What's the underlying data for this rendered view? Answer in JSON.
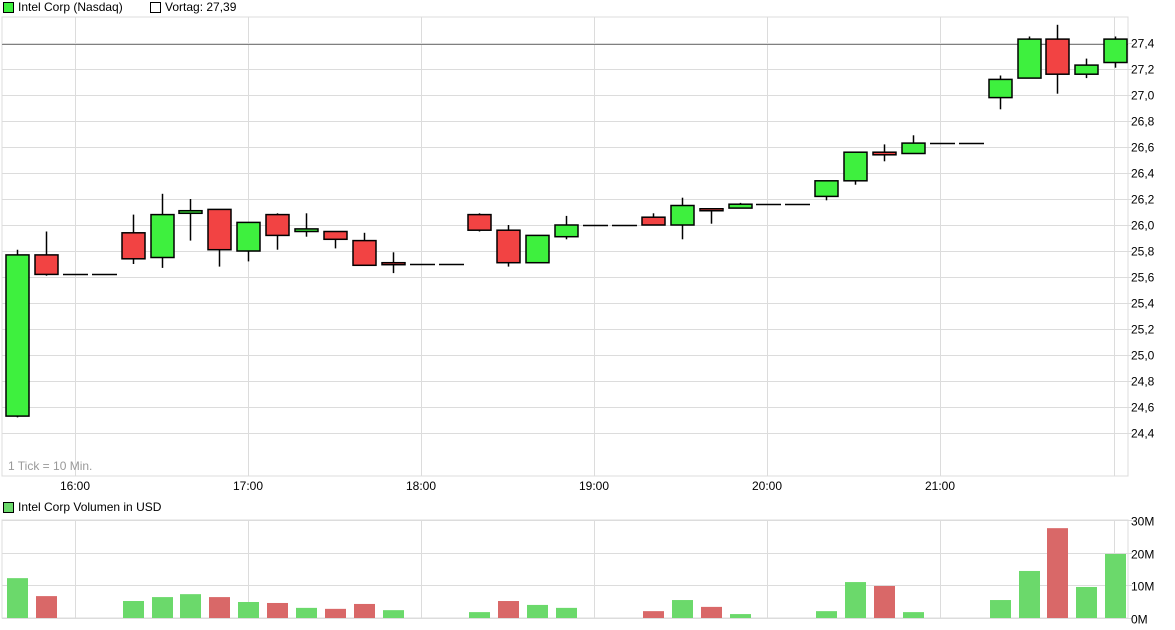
{
  "legend": {
    "price_label": "Intel Corp (Nasdaq)",
    "price_color": "#3ef03e",
    "prev_label": "Vortag: 27,39",
    "volume_label": "Intel Corp Volumen in USD",
    "volume_color": "#6bd96b"
  },
  "tick_note": "1 Tick = 10 Min.",
  "colors": {
    "up": "#3ef03e",
    "down": "#f24343",
    "vol_up": "#6bd96b",
    "vol_down": "#d96868",
    "grid": "#dcdcdc",
    "prev_line": "#808080"
  },
  "chart_data": [
    {
      "type": "candlestick",
      "title": "Intel Corp (Nasdaq)",
      "interval": "10 Min.",
      "previous_close": 27.39,
      "ylim": [
        24.3,
        27.6
      ],
      "yticks": [
        24.4,
        24.6,
        24.8,
        25.0,
        25.2,
        25.4,
        25.6,
        25.8,
        26.0,
        26.2,
        26.4,
        26.6,
        26.8,
        27.0,
        27.2,
        27.4
      ],
      "ytick_labels": [
        "24,4",
        "24,6",
        "24,8",
        "25,0",
        "25,2",
        "25,4",
        "25,6",
        "25,8",
        "26,0",
        "26,2",
        "26,4",
        "26,6",
        "26,8",
        "27,0",
        "27,2",
        "27,4"
      ],
      "xticks": [
        "16:00",
        "17:00",
        "18:00",
        "19:00",
        "20:00",
        "21:00"
      ],
      "grid": true,
      "ohlc": [
        {
          "o": 24.53,
          "h": 25.81,
          "l": 24.52,
          "c": 25.77
        },
        {
          "o": 25.77,
          "h": 25.95,
          "l": 25.61,
          "c": 25.62
        },
        {
          "o": 25.62,
          "h": 25.62,
          "l": 25.62,
          "c": 25.62
        },
        {
          "o": 25.62,
          "h": 25.62,
          "l": 25.62,
          "c": 25.62
        },
        {
          "o": 25.94,
          "h": 26.08,
          "l": 25.7,
          "c": 25.74
        },
        {
          "o": 25.75,
          "h": 26.24,
          "l": 25.67,
          "c": 26.08
        },
        {
          "o": 26.09,
          "h": 26.2,
          "l": 25.88,
          "c": 26.11
        },
        {
          "o": 26.12,
          "h": 26.12,
          "l": 25.68,
          "c": 25.81
        },
        {
          "o": 25.8,
          "h": 26.02,
          "l": 25.72,
          "c": 26.02
        },
        {
          "o": 26.08,
          "h": 26.09,
          "l": 25.81,
          "c": 25.92
        },
        {
          "o": 25.95,
          "h": 26.09,
          "l": 25.91,
          "c": 25.97
        },
        {
          "o": 25.95,
          "h": 25.95,
          "l": 25.82,
          "c": 25.89
        },
        {
          "o": 25.88,
          "h": 25.94,
          "l": 25.69,
          "c": 25.69
        },
        {
          "o": 25.71,
          "h": 25.79,
          "l": 25.63,
          "c": 25.7
        },
        {
          "o": 25.7,
          "h": 25.7,
          "l": 25.7,
          "c": 25.7
        },
        {
          "o": 25.7,
          "h": 25.7,
          "l": 25.7,
          "c": 25.7
        },
        {
          "o": 26.08,
          "h": 26.09,
          "l": 25.95,
          "c": 25.96
        },
        {
          "o": 25.96,
          "h": 26.0,
          "l": 25.68,
          "c": 25.71
        },
        {
          "o": 25.71,
          "h": 25.92,
          "l": 25.71,
          "c": 25.92
        },
        {
          "o": 25.91,
          "h": 26.07,
          "l": 25.89,
          "c": 26.0
        },
        {
          "o": 26.0,
          "h": 26.0,
          "l": 26.0,
          "c": 26.0
        },
        {
          "o": 26.0,
          "h": 26.0,
          "l": 26.0,
          "c": 26.0
        },
        {
          "o": 26.06,
          "h": 26.09,
          "l": 26.0,
          "c": 26.0
        },
        {
          "o": 26.0,
          "h": 26.21,
          "l": 25.89,
          "c": 26.15
        },
        {
          "o": 26.125,
          "h": 26.125,
          "l": 26.01,
          "c": 26.12
        },
        {
          "o": 26.13,
          "h": 26.17,
          "l": 26.13,
          "c": 26.16
        },
        {
          "o": 26.16,
          "h": 26.16,
          "l": 26.16,
          "c": 26.16
        },
        {
          "o": 26.16,
          "h": 26.16,
          "l": 26.16,
          "c": 26.16
        },
        {
          "o": 26.22,
          "h": 26.34,
          "l": 26.19,
          "c": 26.34
        },
        {
          "o": 26.34,
          "h": 26.56,
          "l": 26.31,
          "c": 26.56
        },
        {
          "o": 26.56,
          "h": 26.62,
          "l": 26.49,
          "c": 26.54
        },
        {
          "o": 26.55,
          "h": 26.69,
          "l": 26.55,
          "c": 26.63
        },
        {
          "o": 26.63,
          "h": 26.63,
          "l": 26.63,
          "c": 26.63
        },
        {
          "o": 26.63,
          "h": 26.63,
          "l": 26.63,
          "c": 26.63
        },
        {
          "o": 26.98,
          "h": 27.15,
          "l": 26.89,
          "c": 27.12
        },
        {
          "o": 27.13,
          "h": 27.45,
          "l": 27.13,
          "c": 27.43
        },
        {
          "o": 27.43,
          "h": 27.54,
          "l": 27.01,
          "c": 27.16
        },
        {
          "o": 27.16,
          "h": 27.28,
          "l": 27.13,
          "c": 27.23
        },
        {
          "o": 27.25,
          "h": 27.45,
          "l": 27.21,
          "c": 27.43
        }
      ]
    },
    {
      "type": "bar",
      "title": "Intel Corp Volumen in USD",
      "ylim": [
        0,
        30
      ],
      "yticks": [
        0,
        10,
        20,
        30
      ],
      "ytick_labels": [
        "0M",
        "10M",
        "20M",
        "30M"
      ],
      "unit": "M USD",
      "grid": true,
      "values": [
        12.2,
        6.7,
        0,
        0,
        5.2,
        6.4,
        7.3,
        6.4,
        4.9,
        4.6,
        3.1,
        2.8,
        4.3,
        2.4,
        0,
        0,
        1.8,
        5.2,
        4.0,
        3.1,
        0,
        0,
        2.1,
        5.5,
        3.4,
        1.2,
        0,
        0,
        2.1,
        11.0,
        9.8,
        1.8,
        0,
        0,
        5.5,
        14.4,
        27.5,
        9.5,
        19.6
      ],
      "direction": [
        "up",
        "down",
        "none",
        "none",
        "up",
        "up",
        "up",
        "down",
        "up",
        "down",
        "up",
        "down",
        "down",
        "up",
        "none",
        "none",
        "up",
        "down",
        "up",
        "up",
        "none",
        "none",
        "down",
        "up",
        "down",
        "up",
        "none",
        "none",
        "up",
        "up",
        "down",
        "up",
        "none",
        "none",
        "up",
        "up",
        "down",
        "up",
        "up"
      ]
    }
  ]
}
